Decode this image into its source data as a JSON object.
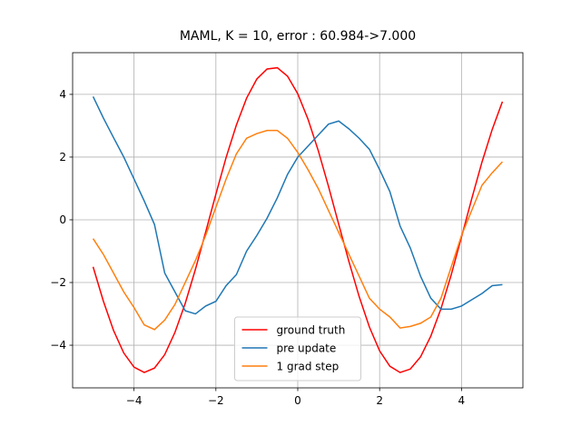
{
  "chart_data": {
    "type": "line",
    "title": "MAML, K = 10, error : 60.984->7.000",
    "x": [
      -5,
      -4.75,
      -4.5,
      -4.25,
      -4,
      -3.75,
      -3.5,
      -3.25,
      -3,
      -2.75,
      -2.5,
      -2.25,
      -2,
      -1.75,
      -1.5,
      -1.25,
      -1,
      -0.75,
      -0.5,
      -0.25,
      0,
      0.25,
      0.5,
      0.75,
      1,
      1.25,
      1.5,
      1.75,
      2,
      2.25,
      2.5,
      2.75,
      3,
      3.25,
      3.5,
      3.75,
      4,
      4.25,
      4.5,
      4.75,
      5
    ],
    "series": [
      {
        "name": "ground truth",
        "color": "#ff0000",
        "values": [
          -1.5,
          -2.59,
          -3.53,
          -4.25,
          -4.7,
          -4.87,
          -4.73,
          -4.3,
          -3.59,
          -2.67,
          -1.58,
          -0.39,
          0.82,
          1.99,
          3.02,
          3.88,
          4.49,
          4.81,
          4.85,
          4.58,
          4.02,
          3.21,
          2.21,
          1.07,
          -0.14,
          -1.33,
          -2.45,
          -3.42,
          -4.18,
          -4.67,
          -4.87,
          -4.76,
          -4.37,
          -3.71,
          -2.83,
          -1.75,
          -0.55,
          0.67,
          1.84,
          2.88,
          3.77
        ]
      },
      {
        "name": "pre update",
        "color": "#1f77b4",
        "values": [
          3.93,
          3.25,
          2.62,
          2.0,
          1.3,
          0.6,
          -0.15,
          -1.7,
          -2.3,
          -2.9,
          -3.0,
          -2.75,
          -2.6,
          -2.1,
          -1.75,
          -1.0,
          -0.5,
          0.05,
          0.7,
          1.45,
          2.0,
          2.35,
          2.7,
          3.05,
          3.15,
          2.9,
          2.6,
          2.25,
          1.6,
          0.9,
          -0.2,
          -0.9,
          -1.8,
          -2.5,
          -2.85,
          -2.85,
          -2.75,
          -2.55,
          -2.35,
          -2.1,
          -2.07
        ]
      },
      {
        "name": "1 grad step",
        "color": "#ff7f0e",
        "values": [
          -0.6,
          -1.1,
          -1.7,
          -2.3,
          -2.8,
          -3.35,
          -3.5,
          -3.2,
          -2.7,
          -2.0,
          -1.3,
          -0.5,
          0.4,
          1.3,
          2.1,
          2.6,
          2.75,
          2.85,
          2.85,
          2.6,
          2.15,
          1.6,
          1.0,
          0.3,
          -0.4,
          -1.1,
          -1.8,
          -2.5,
          -2.85,
          -3.1,
          -3.45,
          -3.4,
          -3.3,
          -3.1,
          -2.5,
          -1.5,
          -0.5,
          0.3,
          1.1,
          1.5,
          1.85
        ]
      }
    ],
    "xlim": [
      -5.5,
      5.5
    ],
    "ylim": [
      -5.36,
      5.33
    ],
    "xticks": [
      {
        "value": -4,
        "label": "−4"
      },
      {
        "value": -2,
        "label": "−2"
      },
      0,
      2,
      4
    ],
    "yticks": [
      {
        "value": -4,
        "label": "−4"
      },
      {
        "value": -2,
        "label": "−2"
      },
      0,
      2,
      4
    ],
    "grid": true,
    "legend": "lower center"
  }
}
